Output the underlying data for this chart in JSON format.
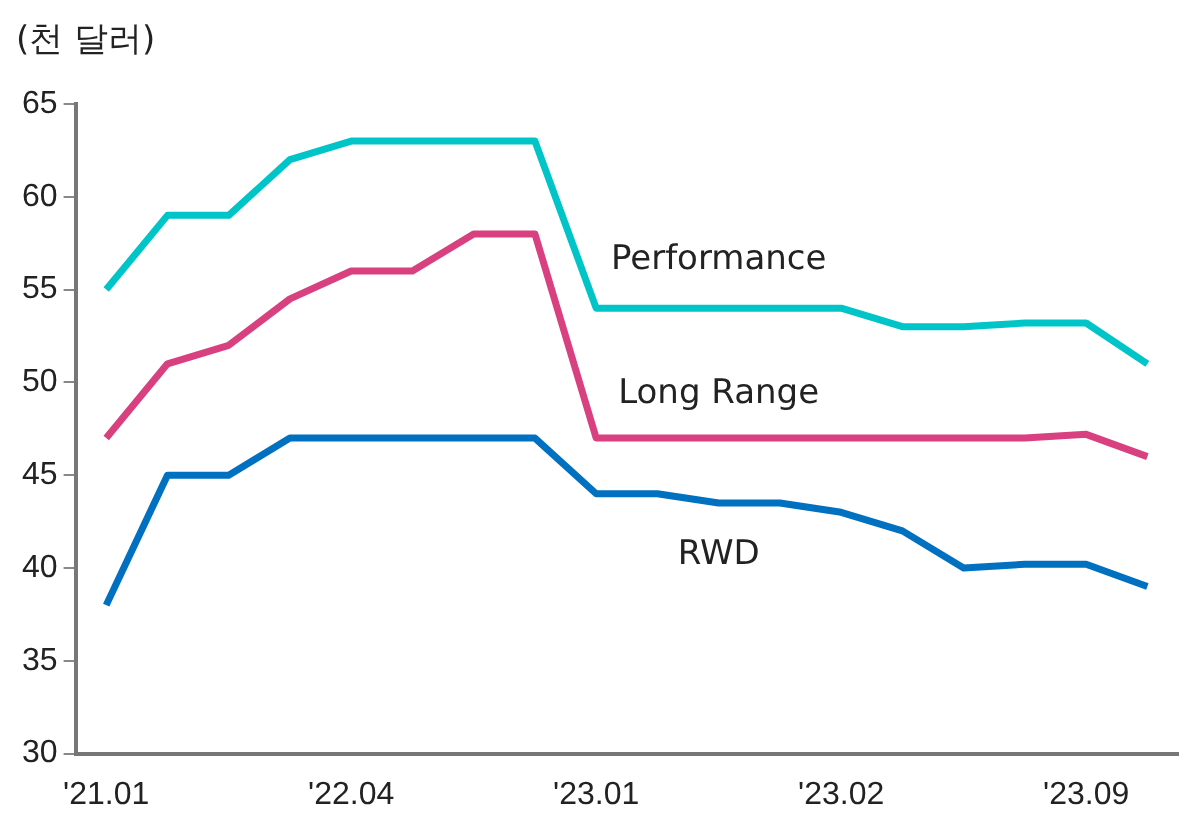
{
  "chart_data": {
    "type": "line",
    "ylabel": "(천 달러)",
    "categories": [
      "'21.01",
      null,
      null,
      null,
      "'22.04",
      null,
      null,
      null,
      "'23.01",
      null,
      null,
      null,
      "'23.02",
      null,
      null,
      null,
      "'23.09",
      null
    ],
    "series": [
      {
        "name": "Performance",
        "color": "#00c5c8",
        "values": [
          55,
          59,
          59,
          62,
          63,
          63,
          63,
          63,
          54,
          54,
          54,
          54,
          54,
          53,
          53,
          53.2,
          53.2,
          51
        ]
      },
      {
        "name": "Long Range",
        "color": "#d9407f",
        "values": [
          47,
          51,
          52,
          54.5,
          56,
          56,
          58,
          58,
          47,
          47,
          47,
          47,
          47,
          47,
          47,
          47,
          47.2,
          46
        ]
      },
      {
        "name": "RWD",
        "color": "#0070c0",
        "values": [
          38,
          45,
          45,
          47,
          47,
          47,
          47,
          47,
          44,
          44,
          43.5,
          43.5,
          43,
          42,
          40,
          40.2,
          40.2,
          39
        ]
      }
    ],
    "ylim": [
      30,
      65
    ],
    "yticks": [
      30,
      35,
      40,
      45,
      50,
      55,
      60,
      65
    ],
    "grid": false,
    "legend": false,
    "marker": "none",
    "line_style": "solid"
  }
}
